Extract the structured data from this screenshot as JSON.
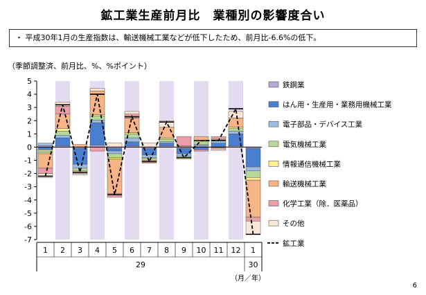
{
  "page": {
    "title": "鉱工業生産前月比　業種別の影響度合い",
    "summary": "・ 平成30年1月の生産指数は、輸送機械工業などが低下したため、前月比-6.6%の低下。",
    "unit_note": "（季節調整済、前月比、%、%ポイント）",
    "page_number": "6",
    "axis_unit_label": "（月／年）"
  },
  "chart_data": {
    "type": "bar",
    "stacked": true,
    "ylim": [
      -7,
      5
    ],
    "yticks": [
      "5",
      "4",
      "3",
      "2",
      "1",
      "0",
      "-1",
      "-2",
      "-3",
      "-4",
      "-5",
      "-6",
      "-7"
    ],
    "categories": [
      "1",
      "2",
      "3",
      "4",
      "5",
      "6",
      "7",
      "8",
      "9",
      "10",
      "11",
      "12",
      "1"
    ],
    "year_labels": [
      "29",
      "30"
    ],
    "grid": false,
    "legend_position": "right",
    "series": [
      {
        "name": "鉄鋼業",
        "color": "#b9a8d8",
        "values": [
          0.1,
          0.1,
          -0.1,
          0.15,
          -0.1,
          0.1,
          -0.1,
          0.1,
          -0.1,
          0.1,
          -0.05,
          0.1,
          -0.1
        ]
      },
      {
        "name": "はん用・生産用・業務用機械工業",
        "color": "#4a7fd0",
        "values": [
          -0.2,
          0.6,
          -1.2,
          1.7,
          -0.2,
          0.3,
          -0.5,
          0.2,
          -0.4,
          -0.2,
          0.3,
          0.9,
          -1.4
        ]
      },
      {
        "name": "電子部品・デバイス工業",
        "color": "#9dbde0",
        "values": [
          0.2,
          0.2,
          -0.3,
          0.2,
          -0.2,
          0.3,
          -0.2,
          0.1,
          -0.2,
          0.1,
          0.2,
          0.2,
          -0.3
        ]
      },
      {
        "name": "電気機械工業",
        "color": "#b7d89c",
        "values": [
          -0.2,
          0.3,
          -0.2,
          0.3,
          -0.3,
          0.3,
          -0.1,
          0.2,
          -0.1,
          0.2,
          0.1,
          0.2,
          -0.5
        ]
      },
      {
        "name": "情報通信機械工業",
        "color": "#fff08c",
        "values": [
          -0.1,
          0.2,
          -0.1,
          0.1,
          -0.1,
          0.1,
          -0.1,
          0.1,
          -0.1,
          0.1,
          0.0,
          0.1,
          -0.2
        ]
      },
      {
        "name": "輸送機械工業",
        "color": "#f6b488",
        "values": [
          -1.1,
          1.1,
          0.2,
          1.8,
          -2.6,
          1.1,
          -0.1,
          0.8,
          0.1,
          0.3,
          -0.1,
          0.7,
          -2.8
        ]
      },
      {
        "name": "化学工業（除．医薬品）",
        "color": "#ec9ea8",
        "values": [
          -0.4,
          0.6,
          -0.1,
          -0.3,
          -0.3,
          0.3,
          -0.1,
          0.0,
          0.7,
          -0.1,
          0.2,
          0.0,
          -0.3
        ]
      },
      {
        "name": "その他",
        "color": "#fbe6d6",
        "values": [
          -0.3,
          0.3,
          -0.1,
          0.2,
          0.3,
          0.2,
          0.3,
          0.5,
          0.0,
          0.0,
          -0.1,
          0.5,
          -1.0
        ]
      }
    ],
    "line_series": {
      "name": "鉱工業",
      "color": "#000000",
      "style": "dashed",
      "values": [
        -2.2,
        3.2,
        -1.9,
        4.0,
        -3.6,
        2.3,
        -1.1,
        1.9,
        -0.8,
        0.5,
        0.5,
        2.9,
        -6.6
      ]
    },
    "shaded_categories": [
      1,
      3,
      5,
      7,
      9,
      11
    ],
    "shade_color": "#e3dbef"
  }
}
